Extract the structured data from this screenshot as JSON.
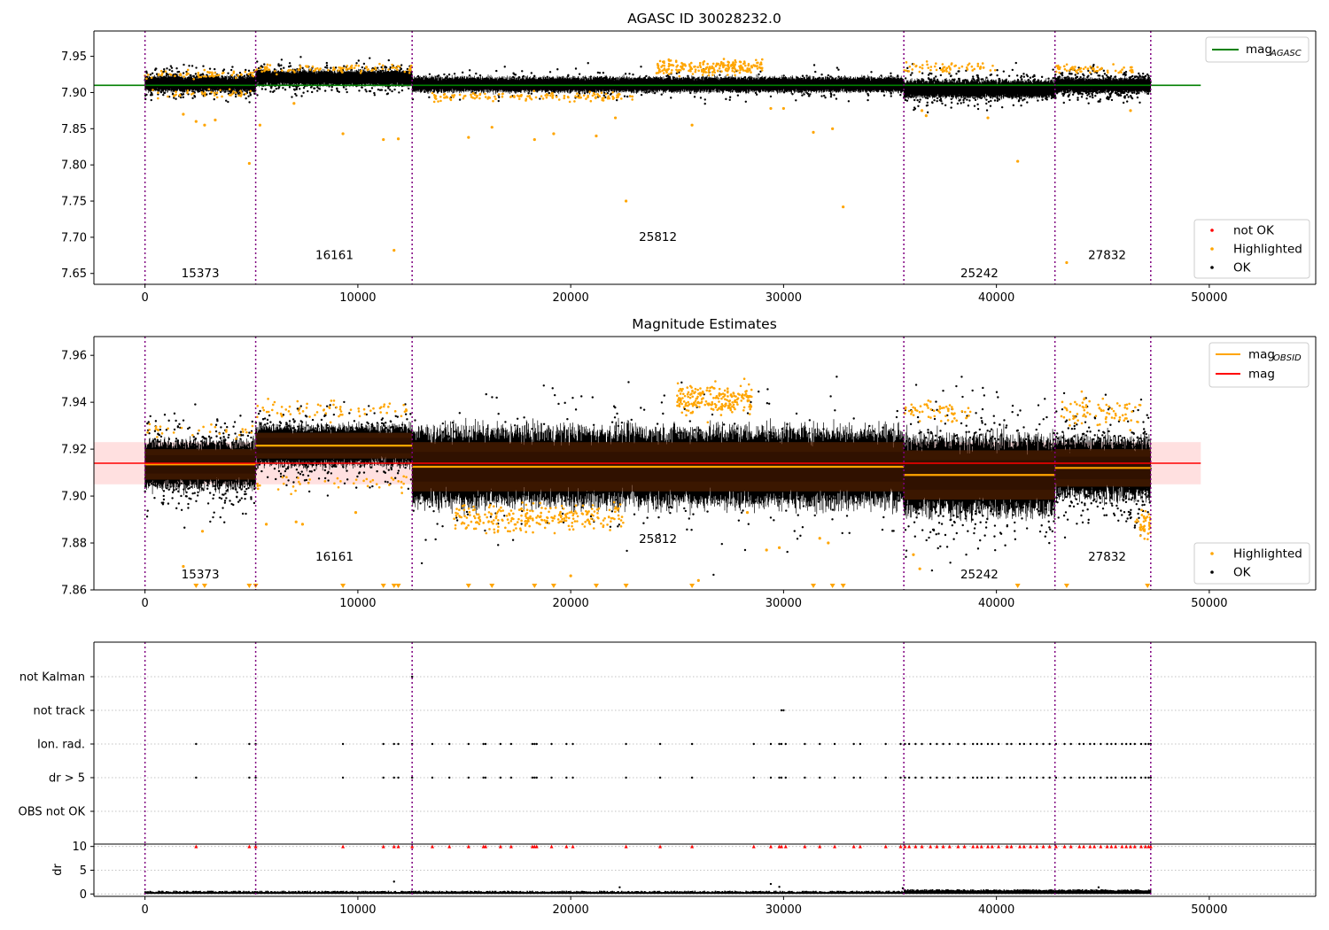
{
  "chart_data": [
    {
      "type": "scatter",
      "title": "AGASC ID 30028232.0",
      "xlim": [
        -2400,
        55000
      ],
      "ylim": [
        7.635,
        7.985
      ],
      "x_ticks": [
        0,
        10000,
        20000,
        30000,
        40000,
        50000
      ],
      "y_ticks": [
        7.65,
        7.7,
        7.75,
        7.8,
        7.85,
        7.9,
        7.95
      ],
      "obsid_boundaries": [
        0,
        5200,
        12550,
        35650,
        42750,
        47250
      ],
      "obsid_labels": [
        {
          "text": "15373",
          "x": 2600,
          "y": 7.645
        },
        {
          "text": "16161",
          "x": 8900,
          "y": 7.67
        },
        {
          "text": "25812",
          "x": 24100,
          "y": 7.695
        },
        {
          "text": "25242",
          "x": 39200,
          "y": 7.645
        },
        {
          "text": "27832",
          "x": 45200,
          "y": 7.67
        }
      ],
      "bands": [
        {
          "x0": 0,
          "x1": 5200,
          "center": 7.912,
          "half": 0.011
        },
        {
          "x0": 5200,
          "x1": 12550,
          "center": 7.92,
          "half": 0.011
        },
        {
          "x0": 12550,
          "x1": 35650,
          "center": 7.911,
          "half": 0.011
        },
        {
          "x0": 35650,
          "x1": 42750,
          "center": 7.905,
          "half": 0.013
        },
        {
          "x0": 42750,
          "x1": 47250,
          "center": 7.91,
          "half": 0.011
        }
      ],
      "outliers": [
        [
          1800,
          7.87
        ],
        [
          2400,
          7.86
        ],
        [
          2800,
          7.855
        ],
        [
          3300,
          7.862
        ],
        [
          4900,
          7.802
        ],
        [
          5400,
          7.855
        ],
        [
          7000,
          7.885
        ],
        [
          9300,
          7.843
        ],
        [
          11200,
          7.835
        ],
        [
          11700,
          7.682
        ],
        [
          11900,
          7.836
        ],
        [
          15200,
          7.838
        ],
        [
          16300,
          7.852
        ],
        [
          18300,
          7.835
        ],
        [
          19200,
          7.843
        ],
        [
          21200,
          7.84
        ],
        [
          22100,
          7.865
        ],
        [
          22600,
          7.75
        ],
        [
          25700,
          7.855
        ],
        [
          29400,
          7.878
        ],
        [
          30000,
          7.878
        ],
        [
          31400,
          7.845
        ],
        [
          32300,
          7.85
        ],
        [
          32800,
          7.742
        ],
        [
          36500,
          7.875
        ],
        [
          36700,
          7.868
        ],
        [
          39600,
          7.865
        ],
        [
          41000,
          7.805
        ],
        [
          43300,
          7.665
        ],
        [
          46300,
          7.875
        ]
      ],
      "series": [
        {
          "name": "mag_AGASC",
          "type": "hline",
          "y": 7.91,
          "x_range": [
            -2400,
            49600
          ],
          "color": "#008000"
        }
      ],
      "legend_main": {
        "label": "mag",
        "sub": "AGASC",
        "placement": "upper right"
      },
      "legend_points": {
        "placement": "lower right",
        "entries": [
          {
            "label": "not OK",
            "color": "#ff0000"
          },
          {
            "label": "Highlighted",
            "color": "#ffa500"
          },
          {
            "label": "OK",
            "color": "#000000"
          }
        ]
      }
    },
    {
      "type": "scatter",
      "title": "Magnitude Estimates",
      "xlim": [
        -2400,
        55000
      ],
      "ylim": [
        7.86,
        7.968
      ],
      "x_ticks": [
        0,
        10000,
        20000,
        30000,
        40000,
        50000
      ],
      "y_ticks": [
        7.86,
        7.88,
        7.9,
        7.92,
        7.94,
        7.96
      ],
      "obsid_boundaries": [
        0,
        5200,
        12550,
        35650,
        42750,
        47250
      ],
      "obsid_labels": [
        {
          "text": "15373",
          "x": 2600,
          "y": 7.865
        },
        {
          "text": "16161",
          "x": 8900,
          "y": 7.8725
        },
        {
          "text": "25812",
          "x": 24100,
          "y": 7.88
        },
        {
          "text": "25242",
          "x": 39200,
          "y": 7.865
        },
        {
          "text": "27832",
          "x": 45200,
          "y": 7.8725
        }
      ],
      "mag_obsid": [
        {
          "x0": 0,
          "x1": 5200,
          "mag": 7.9135,
          "std": 0.0065
        },
        {
          "x0": 5200,
          "x1": 12550,
          "mag": 7.9215,
          "std": 0.0055
        },
        {
          "x0": 12550,
          "x1": 35650,
          "mag": 7.9125,
          "std": 0.0105
        },
        {
          "x0": 35650,
          "x1": 42750,
          "mag": 7.909,
          "std": 0.0105
        },
        {
          "x0": 42750,
          "x1": 47250,
          "mag": 7.912,
          "std": 0.008
        }
      ],
      "mag": {
        "value": 7.914,
        "std": 0.009,
        "x_range": [
          -2400,
          49600
        ]
      },
      "low_markers": [
        2400,
        2800,
        4900,
        5200,
        9300,
        11200,
        11700,
        11900,
        15200,
        16300,
        18300,
        19200,
        21200,
        22600,
        25700,
        31400,
        32300,
        32800,
        41000,
        43300,
        47100
      ],
      "outliers": [
        [
          1800,
          7.87
        ],
        [
          2700,
          7.885
        ],
        [
          5700,
          7.888
        ],
        [
          7100,
          7.889
        ],
        [
          7400,
          7.888
        ],
        [
          9900,
          7.893
        ],
        [
          20000,
          7.866
        ],
        [
          26000,
          7.864
        ],
        [
          28300,
          7.893
        ],
        [
          29200,
          7.877
        ],
        [
          29800,
          7.878
        ],
        [
          31700,
          7.882
        ],
        [
          32100,
          7.88
        ],
        [
          36100,
          7.875
        ],
        [
          36400,
          7.869
        ]
      ],
      "series": [
        {
          "name": "mag_OBSID",
          "color": "#ffa500"
        },
        {
          "name": "mag",
          "color": "#ff0000"
        }
      ],
      "legend_main": {
        "placement": "upper right",
        "entries": [
          {
            "label": "mag",
            "sub": "OBSID",
            "color": "#ffa500"
          },
          {
            "label": "mag",
            "sub": "",
            "color": "#ff0000"
          }
        ]
      },
      "legend_points": {
        "placement": "lower right",
        "entries": [
          {
            "label": "Highlighted",
            "color": "#ffa500"
          },
          {
            "label": "OK",
            "color": "#000000"
          }
        ]
      }
    },
    {
      "type": "scatter",
      "title": "",
      "categories": [
        "not Kalman",
        "not track",
        "Ion. rad.",
        "dr > 5",
        "OBS not OK"
      ],
      "xlim": [
        -2400,
        55000
      ],
      "obsid_boundaries": [
        0,
        5200,
        12550,
        35650,
        42750,
        47250
      ],
      "flags": {
        "not Kalman": [
          12550
        ],
        "not track": [
          29900,
          30000
        ],
        "Ion. rad.": [
          2400,
          4900,
          5200,
          9300,
          11200,
          11700,
          11900,
          12550,
          13500,
          14300,
          15200,
          15900,
          16000,
          16700,
          17200,
          18200,
          18300,
          18400,
          19100,
          19800,
          20100,
          22600,
          24200,
          25700,
          28600,
          29400,
          29800,
          29900,
          30100,
          31000,
          31700,
          32400,
          33300,
          33600,
          34800,
          35500,
          35700,
          35900,
          36200,
          36500,
          36900,
          37200,
          37500,
          37800,
          38200,
          38500,
          38900,
          39100,
          39300,
          39600,
          39800,
          40100,
          40500,
          40700,
          41100,
          41300,
          41600,
          41900,
          42200,
          42500,
          42800,
          43200,
          43500,
          43900,
          44100,
          44400,
          44600,
          44900,
          45200,
          45400,
          45600,
          45900,
          46100,
          46300,
          46500,
          46800,
          47000,
          47150,
          47250
        ],
        "dr > 5": [
          2400,
          4900,
          5200,
          9300,
          11200,
          11700,
          11900,
          12550,
          13500,
          14300,
          15200,
          15900,
          16000,
          16700,
          17200,
          18200,
          18300,
          18400,
          19100,
          19800,
          20100,
          22600,
          24200,
          25700,
          28600,
          29400,
          29800,
          29900,
          30100,
          31000,
          31700,
          32400,
          33300,
          33600,
          34800,
          35500,
          35700,
          35900,
          36200,
          36500,
          36900,
          37200,
          37500,
          37800,
          38200,
          38500,
          38900,
          39100,
          39300,
          39600,
          39800,
          40100,
          40500,
          40700,
          41100,
          41300,
          41600,
          41900,
          42200,
          42500,
          42800,
          43200,
          43500,
          43900,
          44100,
          44400,
          44600,
          44900,
          45200,
          45400,
          45600,
          45900,
          46100,
          46300,
          46500,
          46800,
          47000,
          47150,
          47250
        ],
        "OBS not OK": []
      }
    },
    {
      "type": "scatter",
      "title": "",
      "ylabel": "dr",
      "xlim": [
        -2400,
        55000
      ],
      "ylim": [
        -0.5,
        10.5
      ],
      "x_ticks": [
        0,
        10000,
        20000,
        30000,
        40000,
        50000
      ],
      "y_ticks": [
        0,
        5,
        10
      ],
      "obsid_boundaries": [
        0,
        5200,
        12550,
        35650,
        42750,
        47250
      ],
      "dr_clipped_at": 10,
      "dr_outliers": [
        [
          11700,
          2.6
        ],
        [
          22300,
          1.4
        ],
        [
          29400,
          2.1
        ],
        [
          29800,
          1.5
        ],
        [
          35600,
          1.2
        ],
        [
          44800,
          1.4
        ]
      ]
    }
  ]
}
